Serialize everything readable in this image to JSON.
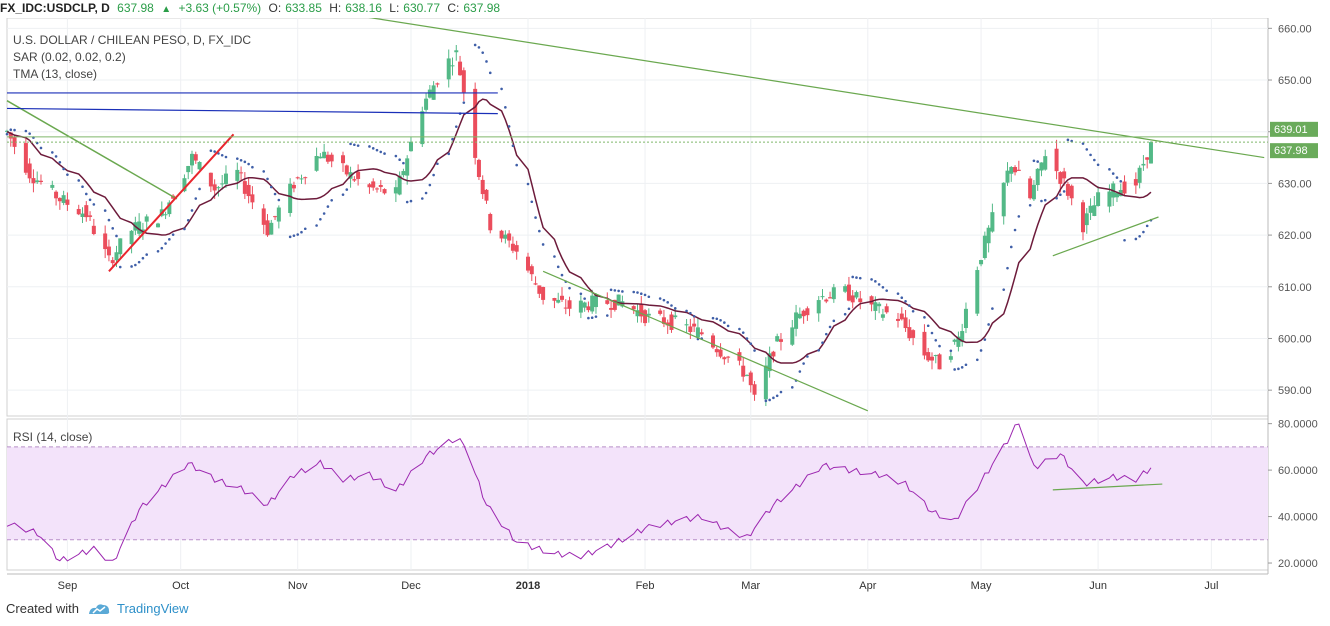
{
  "header": {
    "symbol": "FX_IDC:USDCLP, D",
    "last": "637.98",
    "change": "+3.63 (+0.57%)",
    "open_label": "O:",
    "open": "633.85",
    "high_label": "H:",
    "high": "638.16",
    "low_label": "L:",
    "low": "630.77",
    "close_label": "C:",
    "close": "637.98"
  },
  "legend": {
    "title": "U.S. DOLLAR / CHILEAN PESO, D, FX_IDC",
    "sar": "SAR (0.02, 0.02, 0.2)",
    "tma": "TMA (13, close)",
    "rsi": "RSI (14, close)"
  },
  "footer": {
    "created_with": "Created with",
    "brand": "TradingView"
  },
  "colors": {
    "up": "#53b987",
    "down": "#eb4d5c",
    "tma": "#6d1b3b",
    "sar": "#3f5fa8",
    "green_line": "#6aa84f",
    "blue_line": "#1a2fb8",
    "red_line": "#e8262e",
    "rsi_line": "#9c27b0",
    "rsi_band": "#f3e3fa"
  },
  "chart_data": [
    {
      "type": "candlestick",
      "title": "U.S. DOLLAR / CHILEAN PESO, D, FX_IDC",
      "ylim": [
        585,
        662
      ],
      "yticks": [
        590,
        600,
        610,
        620,
        630,
        640,
        650,
        660
      ],
      "ytick_labels": [
        "590.00",
        "600.00",
        "610.00",
        "620.00",
        "630.00",
        "640.00",
        "650.00",
        "660.00"
      ],
      "price_labels": [
        {
          "value": 639.01,
          "text": "639.01"
        },
        {
          "value": 637.98,
          "text": "637.98"
        }
      ],
      "x_labels": [
        "Sep",
        "Oct",
        "Nov",
        "Dec",
        "2018",
        "Feb",
        "Mar",
        "Apr",
        "May",
        "Jun",
        "Jul"
      ],
      "x_label_dates": [
        "2017-09-01",
        "2017-10-01",
        "2017-11-01",
        "2017-12-01",
        "2018-01-01",
        "2018-02-01",
        "2018-03-01",
        "2018-04-01",
        "2018-05-01",
        "2018-06-01",
        "2018-07-01"
      ],
      "anchors": [
        {
          "date": "2017-08-16",
          "price": 640
        },
        {
          "date": "2017-08-22",
          "price": 632
        },
        {
          "date": "2017-08-30",
          "price": 627
        },
        {
          "date": "2017-09-06",
          "price": 624
        },
        {
          "date": "2017-09-12",
          "price": 615
        },
        {
          "date": "2017-09-18",
          "price": 621
        },
        {
          "date": "2017-09-26",
          "price": 624
        },
        {
          "date": "2017-10-04",
          "price": 635
        },
        {
          "date": "2017-10-10",
          "price": 629
        },
        {
          "date": "2017-10-16",
          "price": 632
        },
        {
          "date": "2017-10-24",
          "price": 621
        },
        {
          "date": "2017-10-31",
          "price": 630
        },
        {
          "date": "2017-11-07",
          "price": 636
        },
        {
          "date": "2017-11-14",
          "price": 632
        },
        {
          "date": "2017-11-20",
          "price": 629
        },
        {
          "date": "2017-11-27",
          "price": 628
        },
        {
          "date": "2017-12-04",
          "price": 645
        },
        {
          "date": "2017-12-10",
          "price": 653
        },
        {
          "date": "2017-12-13",
          "price": 655
        },
        {
          "date": "2017-12-15",
          "price": 648
        },
        {
          "date": "2017-12-19",
          "price": 632
        },
        {
          "date": "2017-12-22",
          "price": 622
        },
        {
          "date": "2017-12-29",
          "price": 617
        },
        {
          "date": "2018-01-05",
          "price": 608
        },
        {
          "date": "2018-01-12",
          "price": 606
        },
        {
          "date": "2018-01-19",
          "price": 607
        },
        {
          "date": "2018-01-26",
          "price": 607
        },
        {
          "date": "2018-02-02",
          "price": 604
        },
        {
          "date": "2018-02-09",
          "price": 603
        },
        {
          "date": "2018-02-16",
          "price": 601
        },
        {
          "date": "2018-02-22",
          "price": 597
        },
        {
          "date": "2018-02-28",
          "price": 593
        },
        {
          "date": "2018-03-02",
          "price": 588
        },
        {
          "date": "2018-03-07",
          "price": 598
        },
        {
          "date": "2018-03-13",
          "price": 604
        },
        {
          "date": "2018-03-19",
          "price": 608
        },
        {
          "date": "2018-03-26",
          "price": 609
        },
        {
          "date": "2018-04-02",
          "price": 606
        },
        {
          "date": "2018-04-09",
          "price": 604
        },
        {
          "date": "2018-04-16",
          "price": 597
        },
        {
          "date": "2018-04-20",
          "price": 595
        },
        {
          "date": "2018-04-25",
          "price": 600
        },
        {
          "date": "2018-04-30",
          "price": 614
        },
        {
          "date": "2018-05-04",
          "price": 623
        },
        {
          "date": "2018-05-09",
          "price": 634
        },
        {
          "date": "2018-05-14",
          "price": 627
        },
        {
          "date": "2018-05-18",
          "price": 636
        },
        {
          "date": "2018-05-23",
          "price": 630
        },
        {
          "date": "2018-05-28",
          "price": 622
        },
        {
          "date": "2018-06-01",
          "price": 627
        },
        {
          "date": "2018-06-06",
          "price": 629
        },
        {
          "date": "2018-06-11",
          "price": 630
        },
        {
          "date": "2018-06-15",
          "price": 637.98
        }
      ],
      "last_bar": {
        "open": 633.85,
        "high": 638.16,
        "low": 630.77,
        "close": 637.98
      }
    },
    {
      "type": "line",
      "title": "RSI (14, close)",
      "ylim": [
        17,
        82
      ],
      "yticks": [
        20,
        40,
        60,
        80
      ],
      "ytick_labels": [
        "20.0000",
        "40.0000",
        "60.0000",
        "80.0000"
      ],
      "band": [
        30,
        70
      ],
      "anchors": [
        {
          "date": "2017-08-16",
          "value": 37
        },
        {
          "date": "2017-08-24",
          "value": 33
        },
        {
          "date": "2017-08-30",
          "value": 21
        },
        {
          "date": "2017-09-08",
          "value": 26
        },
        {
          "date": "2017-09-13",
          "value": 20
        },
        {
          "date": "2017-09-20",
          "value": 43
        },
        {
          "date": "2017-09-27",
          "value": 54
        },
        {
          "date": "2017-10-03",
          "value": 63
        },
        {
          "date": "2017-10-10",
          "value": 56
        },
        {
          "date": "2017-10-17",
          "value": 52
        },
        {
          "date": "2017-10-24",
          "value": 45
        },
        {
          "date": "2017-10-31",
          "value": 58
        },
        {
          "date": "2017-11-07",
          "value": 63
        },
        {
          "date": "2017-11-13",
          "value": 56
        },
        {
          "date": "2017-11-20",
          "value": 58
        },
        {
          "date": "2017-11-27",
          "value": 51
        },
        {
          "date": "2017-12-05",
          "value": 66
        },
        {
          "date": "2017-12-12",
          "value": 73
        },
        {
          "date": "2017-12-15",
          "value": 72
        },
        {
          "date": "2017-12-21",
          "value": 45
        },
        {
          "date": "2017-12-29",
          "value": 29
        },
        {
          "date": "2018-01-08",
          "value": 24
        },
        {
          "date": "2018-01-15",
          "value": 23
        },
        {
          "date": "2018-01-22",
          "value": 27
        },
        {
          "date": "2018-02-01",
          "value": 35
        },
        {
          "date": "2018-02-09",
          "value": 38
        },
        {
          "date": "2018-02-16",
          "value": 40
        },
        {
          "date": "2018-02-23",
          "value": 34
        },
        {
          "date": "2018-02-28",
          "value": 31
        },
        {
          "date": "2018-03-07",
          "value": 45
        },
        {
          "date": "2018-03-14",
          "value": 54
        },
        {
          "date": "2018-03-20",
          "value": 62
        },
        {
          "date": "2018-03-27",
          "value": 60
        },
        {
          "date": "2018-04-04",
          "value": 58
        },
        {
          "date": "2018-04-11",
          "value": 54
        },
        {
          "date": "2018-04-18",
          "value": 42
        },
        {
          "date": "2018-04-24",
          "value": 38
        },
        {
          "date": "2018-05-01",
          "value": 55
        },
        {
          "date": "2018-05-07",
          "value": 70
        },
        {
          "date": "2018-05-11",
          "value": 81
        },
        {
          "date": "2018-05-15",
          "value": 61
        },
        {
          "date": "2018-05-22",
          "value": 67
        },
        {
          "date": "2018-05-28",
          "value": 54
        },
        {
          "date": "2018-06-05",
          "value": 57
        },
        {
          "date": "2018-06-11",
          "value": 56
        },
        {
          "date": "2018-06-15",
          "value": 61
        }
      ]
    }
  ]
}
